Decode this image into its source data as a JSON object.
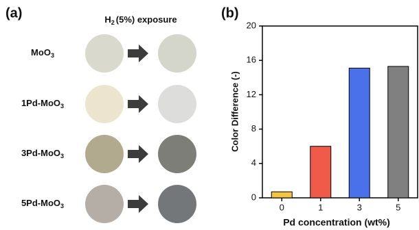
{
  "panel_a": {
    "label": "(a)",
    "header": {
      "main": "H",
      "sub": "2",
      "rest": "(5%) exposure"
    },
    "rows": [
      {
        "name": {
          "main": "MoO",
          "sub": "3"
        },
        "before": "#d9dacd",
        "after": "#d4d6cc"
      },
      {
        "name": {
          "main": "1Pd-MoO",
          "sub": "3"
        },
        "before": "#ede4d0",
        "after": "#dddedb"
      },
      {
        "name": {
          "main": "3Pd-MoO",
          "sub": "3"
        },
        "before": "#b1aa8f",
        "after": "#7d7e77"
      },
      {
        "name": {
          "main": "5Pd-MoO",
          "sub": "3"
        },
        "before": "#b4aea6",
        "after": "#74777a"
      }
    ]
  },
  "chart_data": {
    "type": "bar",
    "label": "(b)",
    "xlabel": "Pd concentration (wt%)",
    "ylabel": "Color Difference (-)",
    "categories": [
      "0",
      "1",
      "3",
      "5"
    ],
    "values": [
      0.7,
      6.0,
      15.1,
      15.3
    ],
    "colors": [
      "#f5c542",
      "#f05a48",
      "#4a70ea",
      "#808080"
    ],
    "ylim": [
      0,
      20
    ],
    "yticks": [
      0,
      4,
      8,
      12,
      16,
      20
    ]
  }
}
